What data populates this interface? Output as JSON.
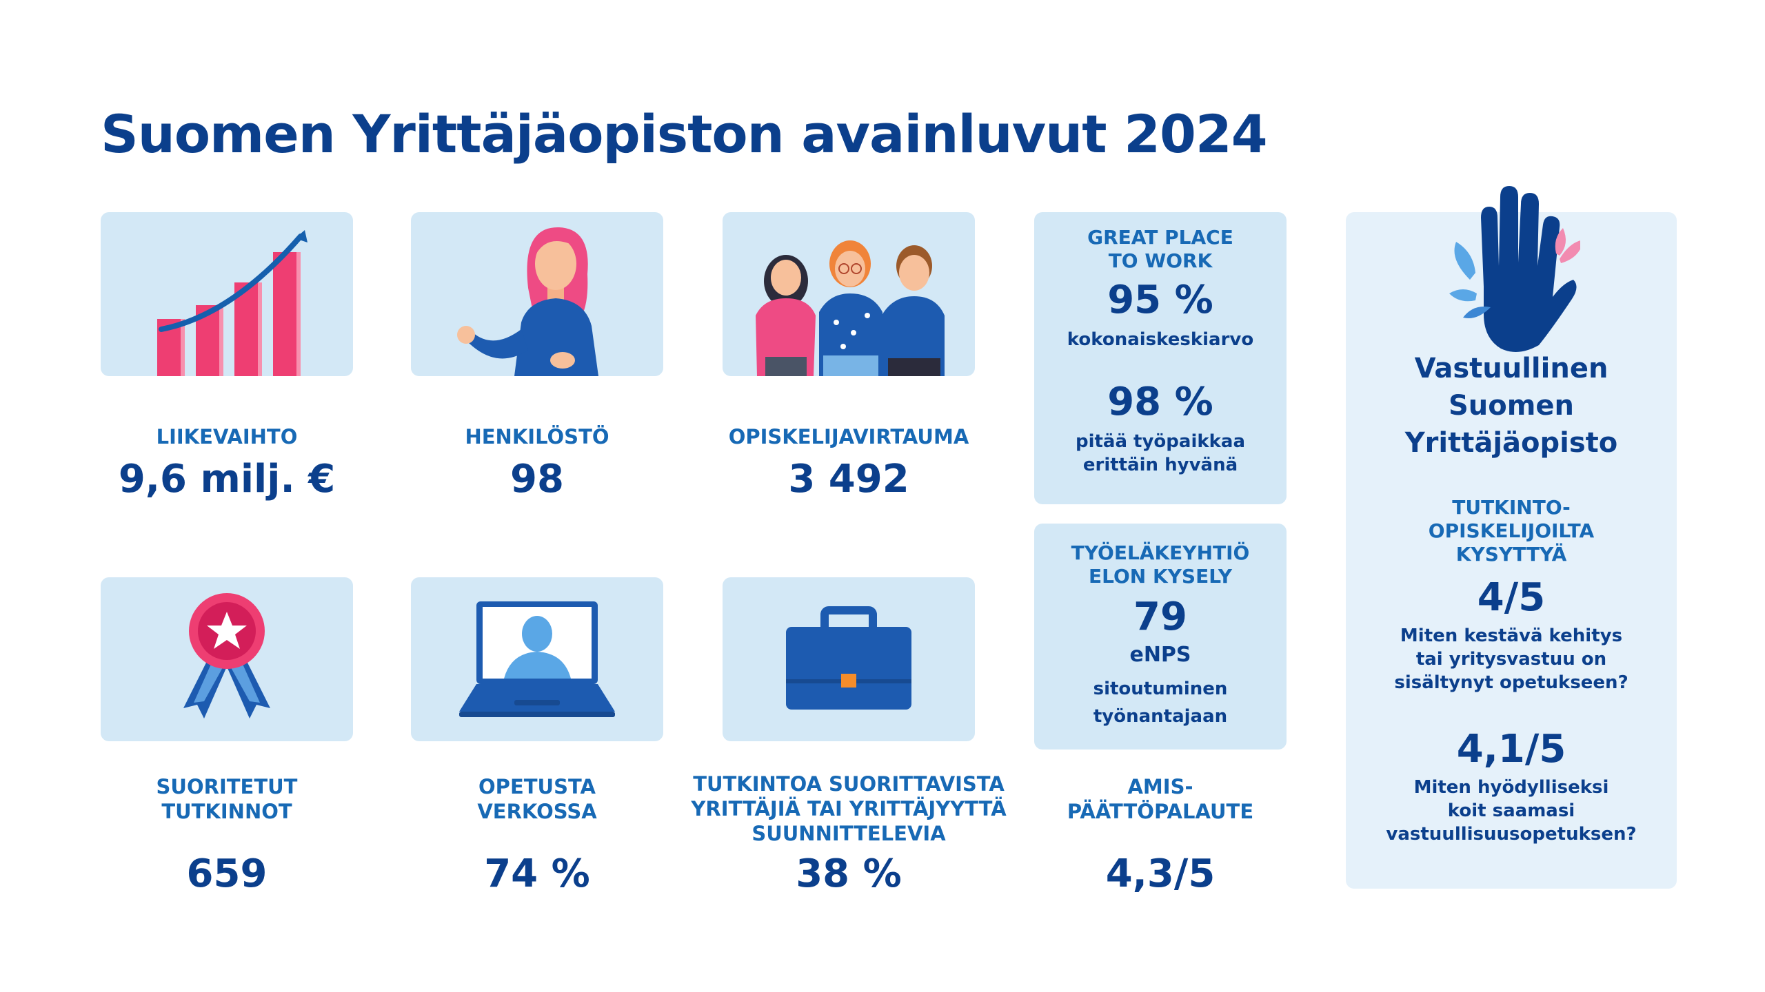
{
  "title": "Suomen Yrittäjäopiston avainluvut 2024",
  "stats": [
    {
      "label": "LIIKEVAIHTO",
      "value": "9,6 milj. €"
    },
    {
      "label": "HENKILÖSTÖ",
      "value": "98"
    },
    {
      "label": "OPISKELIJAVIRTAUMA",
      "value": "3 492"
    },
    {
      "label": "SUORITETUT\nTUTKINNOT",
      "value": "659"
    },
    {
      "label": "OPETUSTA\nVERKOSSA",
      "value": "74 %"
    },
    {
      "label": "TUTKINTOA SUORITTAVISTA\nYRITTÄJIÄ TAI YRITTÄJYYTTÄ\nSUUNNITTELEVIA",
      "value": "38 %"
    }
  ],
  "gptw": {
    "heading": "GREAT PLACE\nTO WORK",
    "value1": "95 %",
    "desc1": "kokonaiskeskiarvo",
    "value2": "98 %",
    "desc2": "pitää työpaikkaa\nerittäin hyvänä"
  },
  "elo": {
    "heading": "TYÖELÄKEYHTIÖ\nELON KYSELY",
    "value": "79",
    "sub": "eNPS",
    "desc": "sitoutuminen\ntyönantajaan"
  },
  "amis": {
    "label": "AMIS-\nPÄÄTTÖPALAUTE",
    "value": "4,3/5"
  },
  "responsible": {
    "heading": "Vastuullinen\nSuomen\nYrittäjäopisto",
    "subheading": "TUTKINTO-\nOPISKELIJOILTA\nKYSYTTYÄ",
    "value1": "4/5",
    "q1": "Miten kestävä kehitys\ntai yritysvastuu on\nsisältynyt opetukseen?",
    "value2": "4,1/5",
    "q2": "Miten hyödylliseksi\nkoit saamasi\nvastuullisuusopetuksen?"
  },
  "colors": {
    "title": "#0b3f8c",
    "label": "#1769b5",
    "card": "#d3e8f6",
    "panel_light": "#e5f1fa",
    "accent_pink": "#ee3e72"
  },
  "icons": [
    "growth-chart-icon",
    "presenter-icon",
    "students-icon",
    "award-ribbon-icon",
    "laptop-video-icon",
    "briefcase-icon",
    "hand-leaves-icon"
  ]
}
